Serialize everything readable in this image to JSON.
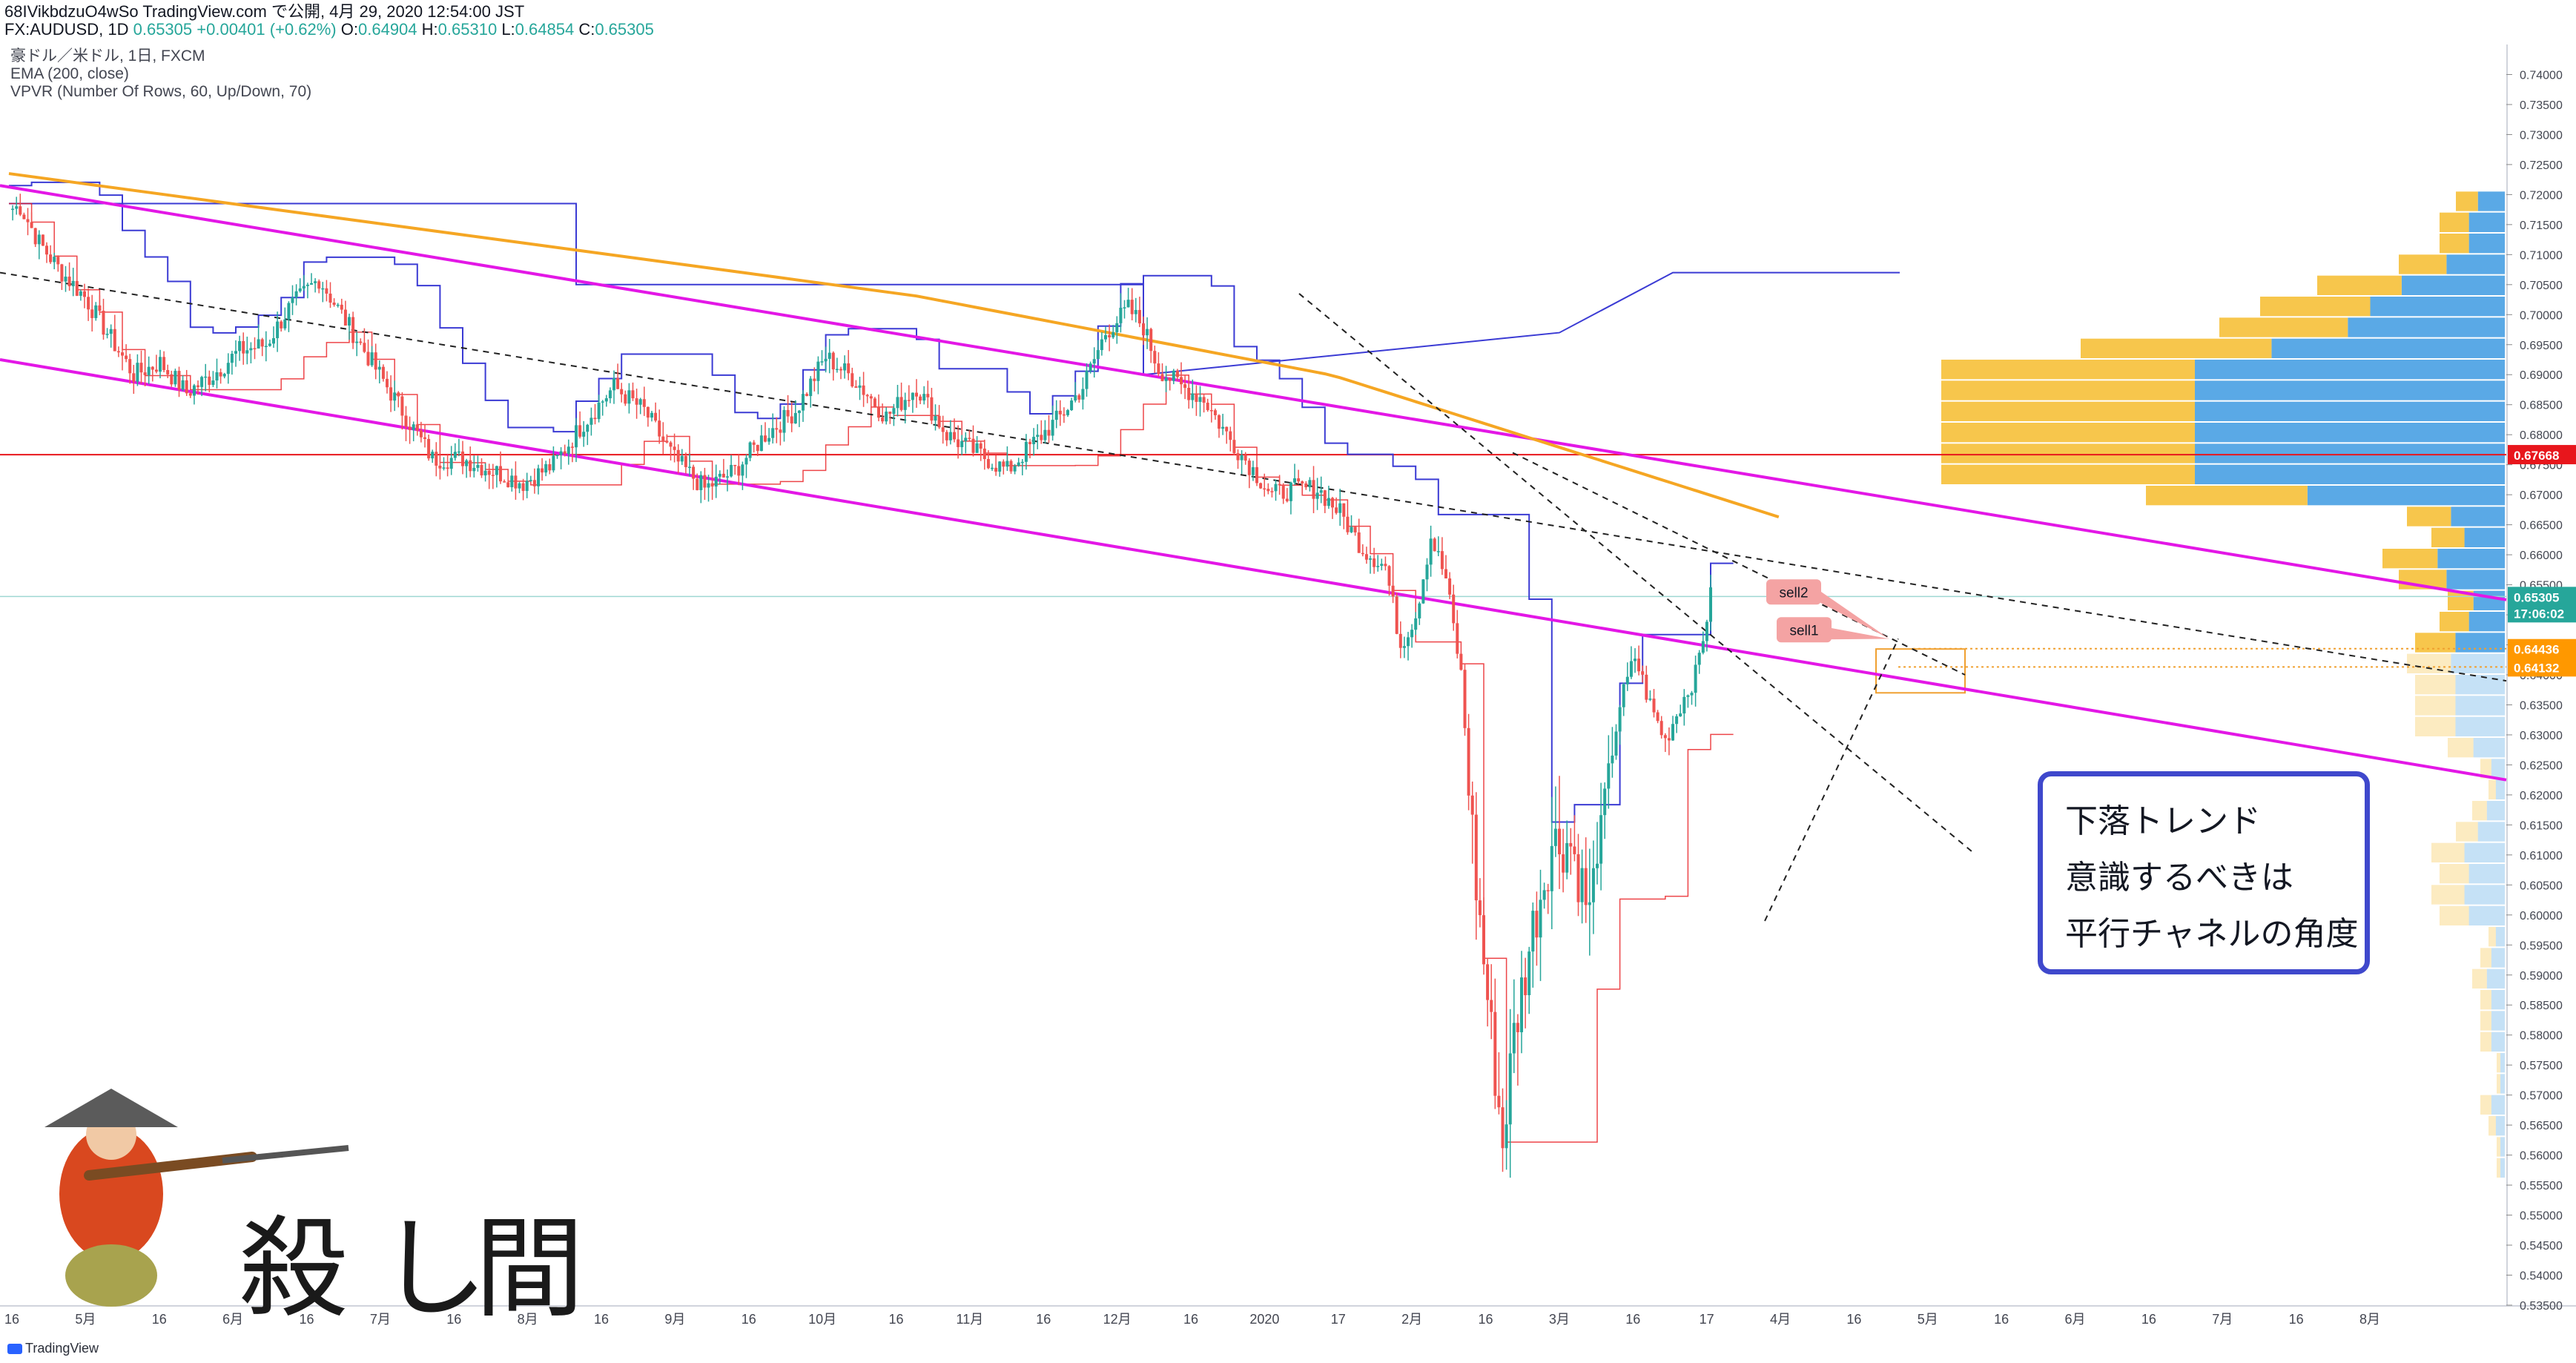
{
  "header": {
    "line1": "68IVikbdzuO4wSo TradingView.com で公開, 4月 29, 2020 12:54:00 JST",
    "symbol": "FX:AUDUSD, 1D",
    "last": "0.65305",
    "change": "+0.00401 (+0.62%)",
    "o_label": "O:",
    "o": "0.64904",
    "h_label": "H:",
    "h": "0.65310",
    "l_label": "L:",
    "l": "0.64854",
    "c_label": "C:",
    "c": "0.65305"
  },
  "legend": {
    "title": "豪ドル／米ドル, 1日, FXCM",
    "ema": "EMA (200, close)",
    "vpvr": "VPVR (Number Of Rows, 60, Up/Down, 70)"
  },
  "note": {
    "line1": "下落トレンド",
    "line2": "意識するべきは",
    "line3": "平行チャネルの角度"
  },
  "calligraphy": [
    "殺",
    "し",
    "間"
  ],
  "footer": {
    "brand": "TradingView"
  },
  "colors": {
    "up": "#26a69a",
    "down": "#ef5350",
    "ema": "#f5a623",
    "channel": "#e317e6",
    "hline": "#e8161c",
    "blue_step": "#3b3bd4",
    "red_step": "#e8161c",
    "vp_up": "#5aa9e6",
    "vp_down": "#f7c64c",
    "note_border": "#3f48cc"
  },
  "chart_data": {
    "type": "candlestick",
    "ylim": [
      0.535,
      0.745
    ],
    "y_ticks": [
      "0.74000",
      "0.73500",
      "0.73000",
      "0.72500",
      "0.72000",
      "0.71500",
      "0.71000",
      "0.70500",
      "0.70000",
      "0.69500",
      "0.69000",
      "0.68500",
      "0.68000",
      "0.67500",
      "0.67000",
      "0.66500",
      "0.66000",
      "0.65500",
      "0.65000",
      "0.64500",
      "0.64000",
      "0.63500",
      "0.63000",
      "0.62500",
      "0.62000",
      "0.61500",
      "0.61000",
      "0.60500",
      "0.60000",
      "0.59500",
      "0.59000",
      "0.58500",
      "0.58000",
      "0.57500",
      "0.57000",
      "0.56500",
      "0.56000",
      "0.55500",
      "0.55000",
      "0.54500",
      "0.54000",
      "0.53500"
    ],
    "x_ticks": [
      "16",
      "5月",
      "16",
      "6月",
      "16",
      "7月",
      "16",
      "8月",
      "16",
      "9月",
      "16",
      "10月",
      "16",
      "11月",
      "16",
      "12月",
      "16",
      "2020",
      "17",
      "2月",
      "16",
      "3月",
      "16",
      "17",
      "4月",
      "16",
      "5月",
      "16",
      "6月",
      "16",
      "7月",
      "16",
      "8月"
    ],
    "price_labels": [
      {
        "value": 0.67668,
        "text": "0.67668"
      },
      {
        "value": 0.65305,
        "text": "0.65305"
      },
      {
        "value": 0.65305,
        "text": "17:06:02"
      },
      {
        "value": 0.64436,
        "text": "0.64436"
      },
      {
        "value": 0.64132,
        "text": "0.64132"
      }
    ],
    "horizontal_line": 0.67668,
    "annotations": [
      {
        "text": "sell2",
        "price": 0.6538
      },
      {
        "text": "sell1",
        "price": 0.6475
      }
    ],
    "series_anchors": [
      [
        0,
        0.7175
      ],
      [
        3,
        0.718
      ],
      [
        8,
        0.712
      ],
      [
        14,
        0.707
      ],
      [
        20,
        0.703
      ],
      [
        26,
        0.697
      ],
      [
        33,
        0.69
      ],
      [
        40,
        0.692
      ],
      [
        47,
        0.687
      ],
      [
        54,
        0.69
      ],
      [
        61,
        0.694
      ],
      [
        68,
        0.695
      ],
      [
        74,
        0.701
      ],
      [
        82,
        0.706
      ],
      [
        88,
        0.7
      ],
      [
        96,
        0.692
      ],
      [
        104,
        0.684
      ],
      [
        112,
        0.676
      ],
      [
        120,
        0.676
      ],
      [
        128,
        0.674
      ],
      [
        136,
        0.672
      ],
      [
        144,
        0.675
      ],
      [
        152,
        0.682
      ],
      [
        160,
        0.688
      ],
      [
        168,
        0.684
      ],
      [
        176,
        0.676
      ],
      [
        184,
        0.671
      ],
      [
        192,
        0.674
      ],
      [
        200,
        0.68
      ],
      [
        208,
        0.684
      ],
      [
        216,
        0.693
      ],
      [
        224,
        0.689
      ],
      [
        232,
        0.683
      ],
      [
        240,
        0.688
      ],
      [
        248,
        0.68
      ],
      [
        256,
        0.677
      ],
      [
        264,
        0.674
      ],
      [
        270,
        0.678
      ],
      [
        278,
        0.683
      ],
      [
        284,
        0.688
      ],
      [
        290,
        0.697
      ],
      [
        296,
        0.701
      ],
      [
        300,
        0.698
      ],
      [
        304,
        0.691
      ],
      [
        310,
        0.688
      ],
      [
        316,
        0.686
      ],
      [
        322,
        0.68
      ],
      [
        328,
        0.675
      ],
      [
        334,
        0.67
      ],
      [
        340,
        0.671
      ],
      [
        346,
        0.671
      ],
      [
        352,
        0.667
      ],
      [
        358,
        0.661
      ],
      [
        364,
        0.658
      ],
      [
        368,
        0.645
      ],
      [
        372,
        0.65
      ],
      [
        376,
        0.663
      ],
      [
        380,
        0.656
      ],
      [
        384,
        0.64
      ],
      [
        388,
        0.605
      ],
      [
        392,
        0.58
      ],
      [
        395,
        0.562
      ],
      [
        398,
        0.58
      ],
      [
        403,
        0.598
      ],
      [
        408,
        0.612
      ],
      [
        413,
        0.612
      ],
      [
        418,
        0.6
      ],
      [
        422,
        0.62
      ],
      [
        426,
        0.635
      ],
      [
        430,
        0.643
      ],
      [
        434,
        0.635
      ],
      [
        438,
        0.629
      ],
      [
        442,
        0.635
      ],
      [
        446,
        0.64
      ],
      [
        450,
        0.653
      ]
    ]
  }
}
